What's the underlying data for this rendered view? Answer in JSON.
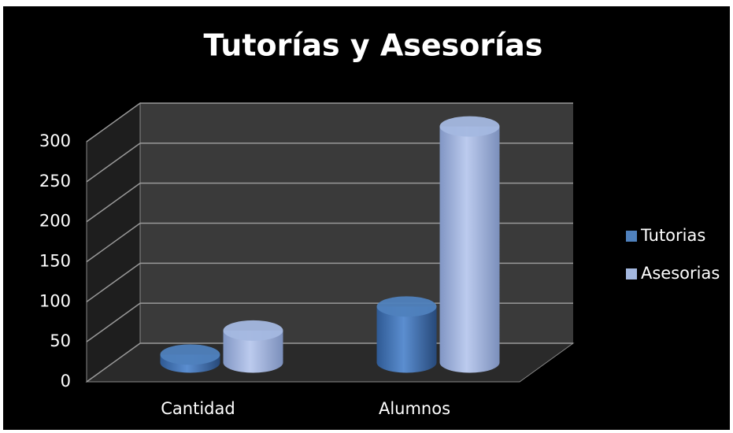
{
  "chart_data": {
    "type": "bar3d",
    "title": "Tutorías y Asesorías",
    "categories": [
      "Cantidad",
      "Alumnos"
    ],
    "series": [
      {
        "name": "Tutorias",
        "color": "#4f81bd",
        "values": [
          10,
          70
        ]
      },
      {
        "name": "Asesorias",
        "color": "#a4b8e0",
        "values": [
          40,
          295
        ]
      }
    ],
    "ylim": [
      0,
      300
    ],
    "yticks": [
      0,
      50,
      100,
      150,
      200,
      250,
      300
    ],
    "grid": true,
    "legend": "right"
  }
}
